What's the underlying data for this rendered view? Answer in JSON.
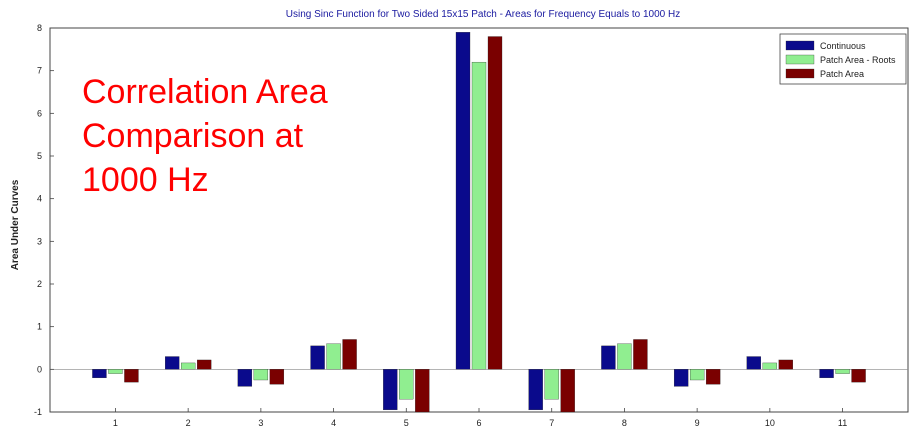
{
  "overlay": {
    "lines": [
      "Correlation Area",
      "Comparison at",
      "1000 Hz"
    ],
    "color": "#ff0000"
  },
  "chart_data": {
    "type": "bar",
    "title": "Using Sinc Function for Two Sided 15x15 Patch - Areas for Frequency Equals to 1000 Hz",
    "xlabel": "",
    "ylabel": "Area Under Curves",
    "categories": [
      "1",
      "2",
      "3",
      "4",
      "5",
      "6",
      "7",
      "8",
      "9",
      "10",
      "11"
    ],
    "ylim": [
      -1,
      8
    ],
    "yticks": [
      -1,
      0,
      1,
      2,
      3,
      4,
      5,
      6,
      7,
      8
    ],
    "grid": false,
    "legend_position": "top-right",
    "series": [
      {
        "name": "Continuous",
        "color": "#0a0a8c",
        "values": [
          -0.2,
          0.3,
          -0.4,
          0.55,
          -0.95,
          7.9,
          -0.95,
          0.55,
          -0.4,
          0.3,
          -0.2
        ]
      },
      {
        "name": "Patch Area - Roots",
        "color": "#90ee90",
        "values": [
          -0.1,
          0.15,
          -0.25,
          0.6,
          -0.7,
          7.2,
          -0.7,
          0.6,
          -0.25,
          0.15,
          -0.1
        ]
      },
      {
        "name": "Patch Area",
        "color": "#7a0000",
        "values": [
          -0.3,
          0.22,
          -0.35,
          0.7,
          -1.0,
          7.8,
          -1.0,
          0.7,
          -0.35,
          0.22,
          -0.3
        ]
      }
    ]
  }
}
